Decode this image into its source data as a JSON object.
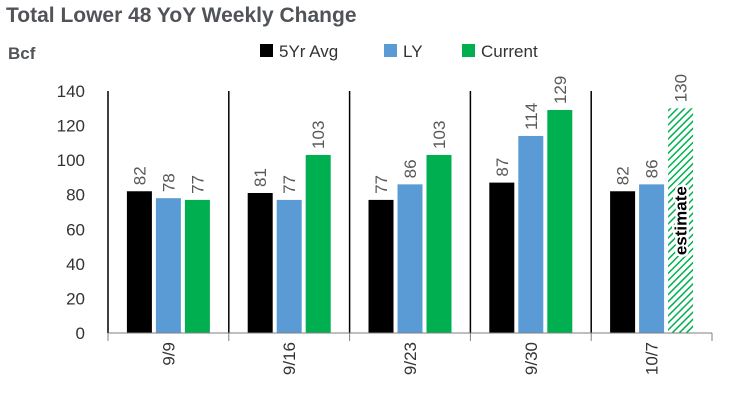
{
  "chart_data": {
    "type": "bar",
    "title": "Total Lower 48 YoY Weekly Change",
    "ylabel": "Bcf",
    "categories": [
      "9/9",
      "9/16",
      "9/23",
      "9/30",
      "10/7"
    ],
    "series": [
      {
        "name": "5Yr Avg",
        "color": "#000000",
        "values": [
          82,
          81,
          77,
          87,
          82
        ]
      },
      {
        "name": "LY",
        "color": "#5b9bd5",
        "values": [
          78,
          77,
          86,
          114,
          86
        ]
      },
      {
        "name": "Current",
        "color": "#00b050",
        "values": [
          77,
          103,
          103,
          129,
          130
        ]
      }
    ],
    "estimated": {
      "category": "10/7",
      "series": "Current",
      "label": "estimate",
      "pattern": "green-diagonal-hatch"
    },
    "ylim": [
      0,
      140
    ],
    "yticks": [
      0,
      20,
      40,
      60,
      80,
      100,
      120,
      140
    ],
    "legend": "top",
    "grid": false
  }
}
